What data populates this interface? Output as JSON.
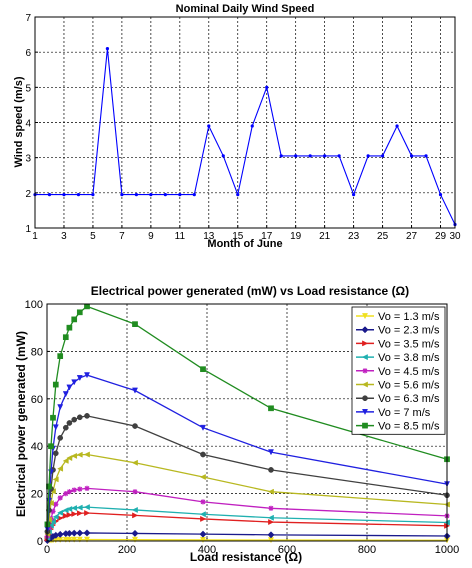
{
  "chart_data": [
    {
      "type": "line",
      "title": "Nominal Daily Wind Speed",
      "xlabel": "Month of June",
      "ylabel": "Wind speed (m/s)",
      "xlim": [
        1,
        30
      ],
      "ylim": [
        1,
        7
      ],
      "x_ticks": [
        1,
        3,
        5,
        7,
        9,
        11,
        13,
        15,
        17,
        19,
        21,
        23,
        25,
        27,
        29,
        30
      ],
      "x_tick_labels": [
        "1",
        "3",
        "5",
        "7",
        "9",
        "11",
        "13",
        "15",
        "17",
        "19",
        "21",
        "23",
        "25",
        "27",
        "29",
        "30"
      ],
      "y_ticks": [
        1,
        2,
        3,
        4,
        5,
        6,
        7
      ],
      "y_tick_labels": [
        "1",
        "2",
        "3",
        "4",
        "5",
        "6",
        "7"
      ],
      "grid": true,
      "color": "#0000ff",
      "x": [
        1,
        2,
        3,
        4,
        5,
        6,
        7,
        8,
        9,
        10,
        11,
        12,
        13,
        14,
        15,
        16,
        17,
        18,
        19,
        20,
        21,
        22,
        23,
        24,
        25,
        26,
        27,
        28,
        29,
        30
      ],
      "values": [
        1.95,
        1.95,
        1.95,
        1.95,
        1.95,
        6.1,
        1.95,
        1.95,
        1.95,
        1.95,
        1.95,
        1.95,
        3.9,
        3.05,
        1.95,
        3.9,
        5.0,
        3.05,
        3.05,
        3.05,
        3.05,
        3.05,
        1.95,
        3.05,
        3.05,
        3.9,
        3.05,
        3.05,
        1.95,
        1.1
      ]
    },
    {
      "type": "line",
      "title": "Electrical power generated (mW) vs Load resistance (Ω)",
      "xlabel": "Load resistance (Ω)",
      "ylabel": "Electrical power generated (mW)",
      "xlim": [
        0,
        1000
      ],
      "ylim": [
        0,
        100
      ],
      "x_ticks": [
        0,
        200,
        400,
        600,
        800,
        1000
      ],
      "x_tick_labels": [
        "0",
        "200",
        "400",
        "600",
        "800",
        "1000"
      ],
      "y_ticks": [
        0,
        20,
        40,
        60,
        80,
        100
      ],
      "y_tick_labels": [
        "0",
        "20",
        "40",
        "60",
        "80",
        "100"
      ],
      "grid": true,
      "legend_position": "top-right",
      "x": [
        1,
        5,
        10,
        15,
        22,
        33,
        47,
        56,
        68,
        82,
        100,
        220,
        390,
        560,
        1000
      ],
      "series": [
        {
          "name": "Vo = 1.3 m/s",
          "color": "#f0e020",
          "marker": "triangle-down",
          "values": [
            0.03,
            0.12,
            0.22,
            0.3,
            0.38,
            0.46,
            0.52,
            0.55,
            0.57,
            0.59,
            0.6,
            0.56,
            0.48,
            0.4,
            0.3
          ]
        },
        {
          "name": "Vo = 2.3 m/s",
          "color": "#1a1a8c",
          "marker": "diamond",
          "values": [
            0.2,
            0.8,
            1.4,
            1.9,
            2.4,
            2.8,
            3.1,
            3.2,
            3.3,
            3.35,
            3.4,
            3.2,
            2.9,
            2.6,
            2.1
          ]
        },
        {
          "name": "Vo = 3.5 m/s",
          "color": "#e02020",
          "marker": "triangle-right",
          "values": [
            1,
            3,
            5,
            6.7,
            8.3,
            9.6,
            10.6,
            11.0,
            11.4,
            11.7,
            11.8,
            10.8,
            9.3,
            8.0,
            6.4
          ]
        },
        {
          "name": "Vo = 3.8 m/s",
          "color": "#20b0b0",
          "marker": "triangle-left",
          "values": [
            1.3,
            4,
            6.5,
            8.2,
            10.2,
            11.9,
            13.0,
            13.5,
            13.9,
            14.1,
            14.3,
            13.1,
            11.3,
            9.8,
            7.8
          ]
        },
        {
          "name": "Vo = 4.5 m/s",
          "color": "#c020c0",
          "marker": "star",
          "values": [
            2,
            5.5,
            9.5,
            12.5,
            15.5,
            18.2,
            20.0,
            20.8,
            21.5,
            21.9,
            22.2,
            20.8,
            16.5,
            13.8,
            10.6
          ]
        },
        {
          "name": "Vo = 5.6 m/s",
          "color": "#b8b820",
          "marker": "triangle-left",
          "values": [
            3,
            9,
            16,
            21,
            26,
            30.5,
            33.8,
            35.0,
            35.9,
            36.4,
            36.5,
            33.0,
            27.0,
            20.8,
            15.4
          ]
        },
        {
          "name": "Vo = 6.3 m/s",
          "color": "#404040",
          "marker": "circle",
          "values": [
            4,
            13,
            22,
            30,
            37,
            43.5,
            47.8,
            49.8,
            51.2,
            52.2,
            52.8,
            48.5,
            36.5,
            30.0,
            19.3
          ]
        },
        {
          "name": "Vo = 7 m/s",
          "color": "#2020e0",
          "marker": "triangle-down",
          "values": [
            5,
            17,
            29,
            39,
            48,
            56.5,
            62.0,
            64.8,
            67.0,
            68.8,
            70.0,
            63.5,
            47.8,
            37.5,
            24.0
          ]
        },
        {
          "name": "Vo = 8.5 m/s",
          "color": "#208c20",
          "marker": "square",
          "values": [
            7,
            23,
            40,
            52,
            66,
            78,
            86,
            90,
            93.5,
            96.5,
            99,
            91.5,
            72.5,
            56,
            34.5
          ]
        }
      ]
    }
  ]
}
